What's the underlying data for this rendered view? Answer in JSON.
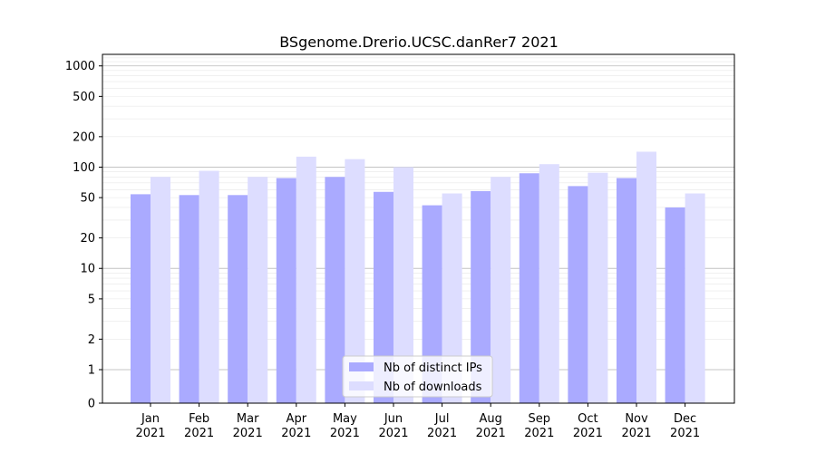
{
  "chart_data": {
    "type": "bar",
    "title": "BSgenome.Drerio.UCSC.danRer7 2021",
    "xlabel": "",
    "ylabel": "",
    "yscale": "symlog",
    "ylim": [
      0,
      1300
    ],
    "yticks": [
      0,
      1,
      2,
      5,
      10,
      20,
      50,
      100,
      200,
      500,
      1000
    ],
    "grid": true,
    "legend_position": "bottom-center",
    "categories": [
      [
        "Jan",
        "2021"
      ],
      [
        "Feb",
        "2021"
      ],
      [
        "Mar",
        "2021"
      ],
      [
        "Apr",
        "2021"
      ],
      [
        "May",
        "2021"
      ],
      [
        "Jun",
        "2021"
      ],
      [
        "Jul",
        "2021"
      ],
      [
        "Aug",
        "2021"
      ],
      [
        "Sep",
        "2021"
      ],
      [
        "Oct",
        "2021"
      ],
      [
        "Nov",
        "2021"
      ],
      [
        "Dec",
        "2021"
      ]
    ],
    "series": [
      {
        "name": "Nb of distinct IPs",
        "color": "#aaaaff",
        "values": [
          54,
          53,
          53,
          78,
          80,
          57,
          42,
          58,
          87,
          65,
          78,
          40
        ]
      },
      {
        "name": "Nb of downloads",
        "color": "#ddddff",
        "values": [
          80,
          92,
          80,
          127,
          120,
          100,
          55,
          80,
          107,
          88,
          142,
          55
        ]
      }
    ]
  }
}
